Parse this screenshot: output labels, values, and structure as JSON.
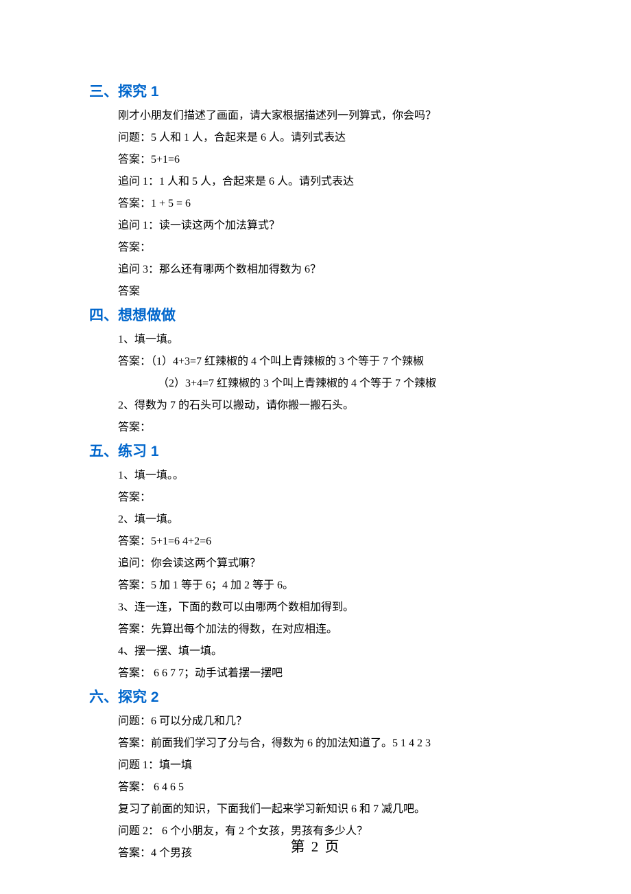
{
  "sections": {
    "s1": {
      "heading": "三、探究 1",
      "lines": [
        "刚才小朋友们描述了画面，请大家根据描述列一列算式，你会吗？",
        "问题：5 人和 1 人，合起来是 6 人。请列式表达",
        "答案：5+1=6",
        "追问 1：1 人和 5 人，合起来是 6 人。请列式表达",
        "答案：1 +   5 = 6",
        "追问 1：读一读这两个加法算式？",
        "答案：",
        "追问 3：那么还有哪两个数相加得数为 6？",
        "答案"
      ]
    },
    "s2": {
      "heading": "四、想想做做",
      "lines": [
        "1、填一填。",
        "答案：（1）4+3=7   红辣椒的 4 个叫上青辣椒的 3 个等于 7 个辣椒"
      ],
      "indented_line": "（2）3+4=7   红辣椒的 3 个叫上青辣椒的 4 个等于 7 个辣椒",
      "lines_after": [
        "2、得数为 7 的石头可以搬动，请你搬一搬石头。",
        "答案："
      ]
    },
    "s3": {
      "heading": "五、练习 1",
      "lines": [
        "1、填一填。。",
        "答案：",
        "2、填一填。",
        "答案：5+1=6            4+2=6",
        "追问：你会读这两个算式嘛？",
        "答案：5 加 1 等于 6；4 加 2 等于 6。",
        "3、连一连，下面的数可以由哪两个数相加得到。",
        "答案：先算出每个加法的得数，在对应相连。",
        "4、摆一摆、填一填。",
        "答案： 6   6   7  7；动手试着摆一摆吧"
      ]
    },
    "s4": {
      "heading": "六、探究 2",
      "lines": [
        "问题：6 可以分成几和几？",
        "答案：前面我们学习了分与合，得数为 6 的加法知道了。5   1   4   2   3",
        "问题 1：填一填",
        "答案：  6   4    6   5",
        "复习了前面的知识，下面我们一起来学习新知识 6 和 7 减几吧。",
        "问题 2：  6 个小朋友，有 2 个女孩，男孩有多少人？",
        "答案：4 个男孩"
      ]
    }
  },
  "footer": "第 2 页"
}
